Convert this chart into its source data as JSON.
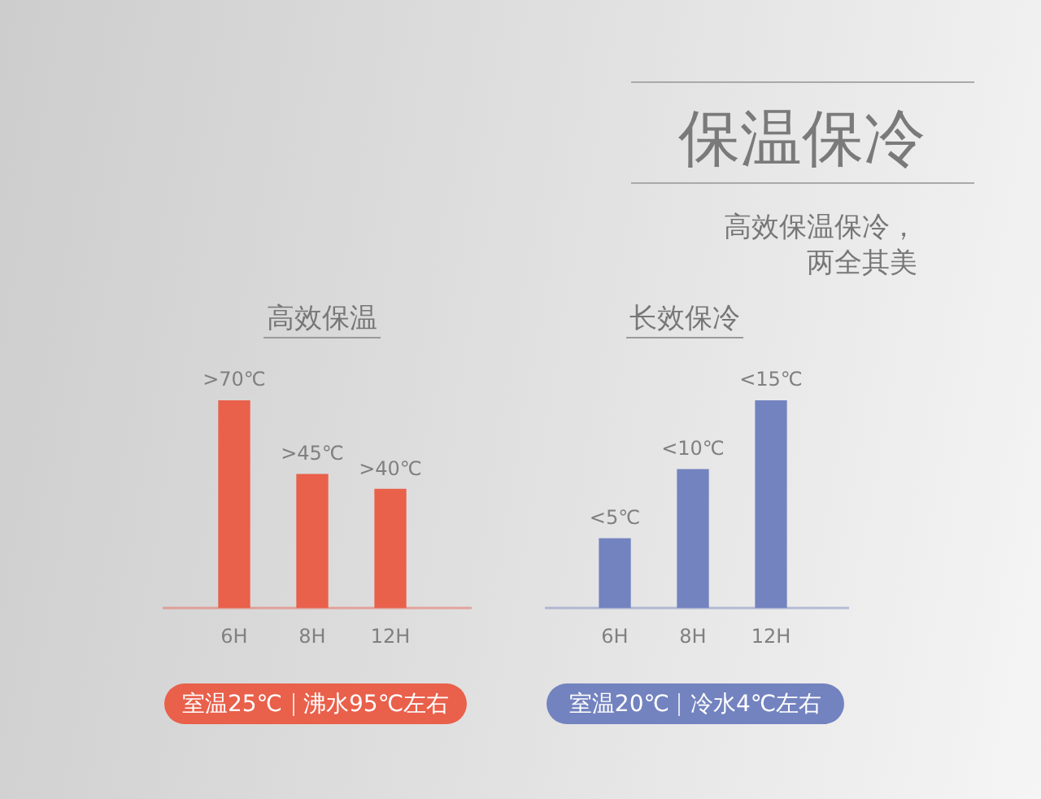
{
  "chart_data": [
    {
      "type": "other",
      "title": "保温保冷",
      "subtitle": "高效保温保冷，两全其美"
    },
    {
      "type": "bar",
      "title": "高效保温",
      "categories": [
        "6H",
        "8H",
        "12H"
      ],
      "values": [
        70,
        45,
        40
      ],
      "value_labels": [
        ">70℃",
        ">45℃",
        ">40℃"
      ],
      "color": "#e9604b",
      "tick_labels": "x",
      "grid": false,
      "legend": false,
      "annotations": [
        "室温25℃",
        "沸水95℃左右"
      ]
    },
    {
      "type": "bar",
      "title": "长效保冷",
      "categories": [
        "6H",
        "8H",
        "12H"
      ],
      "values": [
        5,
        10,
        15
      ],
      "value_labels": [
        "<5℃",
        "<10℃",
        "<15℃"
      ],
      "color": "#7383bf",
      "tick_labels": "x",
      "grid": false,
      "legend": false,
      "annotations": [
        "室温20℃",
        "冷水4℃左右"
      ]
    }
  ]
}
